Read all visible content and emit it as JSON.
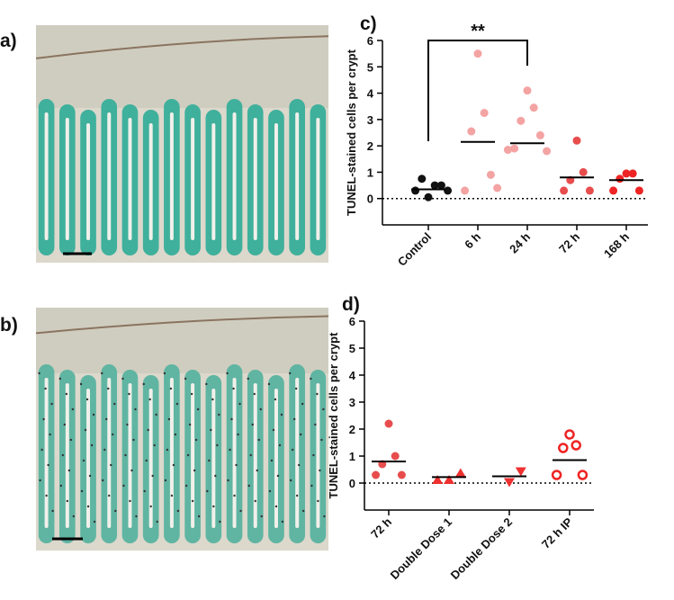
{
  "images": [
    {
      "label": "a)"
    },
    {
      "label": "b)"
    }
  ],
  "chart_data": [
    {
      "type": "strip",
      "panel_label": "c)",
      "y_label": "TUNEL-stained cells per crypt",
      "categories": [
        "Control",
        "6 h",
        "24 h",
        "72 h",
        "168 h"
      ],
      "points": [
        [
          0.05,
          0.5,
          0.75,
          0.5,
          0.3,
          0.3
        ],
        [
          5.5,
          3.25,
          2.55,
          0.9,
          0.3,
          0.4
        ],
        [
          4.1,
          3.45,
          2.95,
          2.4,
          1.9,
          1.8,
          1.85
        ],
        [
          2.2,
          1.0,
          0.7,
          0.3,
          0.3
        ],
        [
          0.95,
          0.95,
          0.75,
          0.3,
          0.3
        ]
      ],
      "means": [
        0.35,
        2.15,
        2.1,
        0.8,
        0.7
      ],
      "colors": [
        "#111111",
        "#f4a3a3",
        "#f4a3a3",
        "#e84d4d",
        "#ee2424"
      ],
      "markers": [
        "circle",
        "circle",
        "circle",
        "circle",
        "circle"
      ],
      "ylim": [
        -1,
        6
      ],
      "yticks": [
        0,
        1,
        2,
        3,
        4,
        5,
        6
      ],
      "zero_line": true,
      "annotation": {
        "text": "**",
        "between": [
          "Control",
          "24 h"
        ]
      }
    },
    {
      "type": "strip",
      "panel_label": "d)",
      "y_label": "TUNEL-stained cells per crypt",
      "categories": [
        "72 h",
        "Double Dose 1",
        "Double Dose 2",
        "72 h IP"
      ],
      "points": [
        [
          2.2,
          1.0,
          0.7,
          0.3,
          0.3
        ],
        [
          0.1,
          0.35,
          0.1
        ],
        [
          0.05,
          0.45
        ],
        [
          1.8,
          1.4,
          1.3,
          0.3,
          0.3
        ]
      ],
      "means": [
        0.8,
        0.22,
        0.25,
        0.85
      ],
      "colors": [
        "#e84d4d",
        "#ee3030",
        "#ee3030",
        "#ee2424"
      ],
      "markers": [
        "circle",
        "triangle",
        "triangle-down",
        "circle-open"
      ],
      "ylim": [
        -1,
        6
      ],
      "yticks": [
        0,
        1,
        2,
        3,
        4,
        5,
        6
      ],
      "zero_line": true
    }
  ]
}
